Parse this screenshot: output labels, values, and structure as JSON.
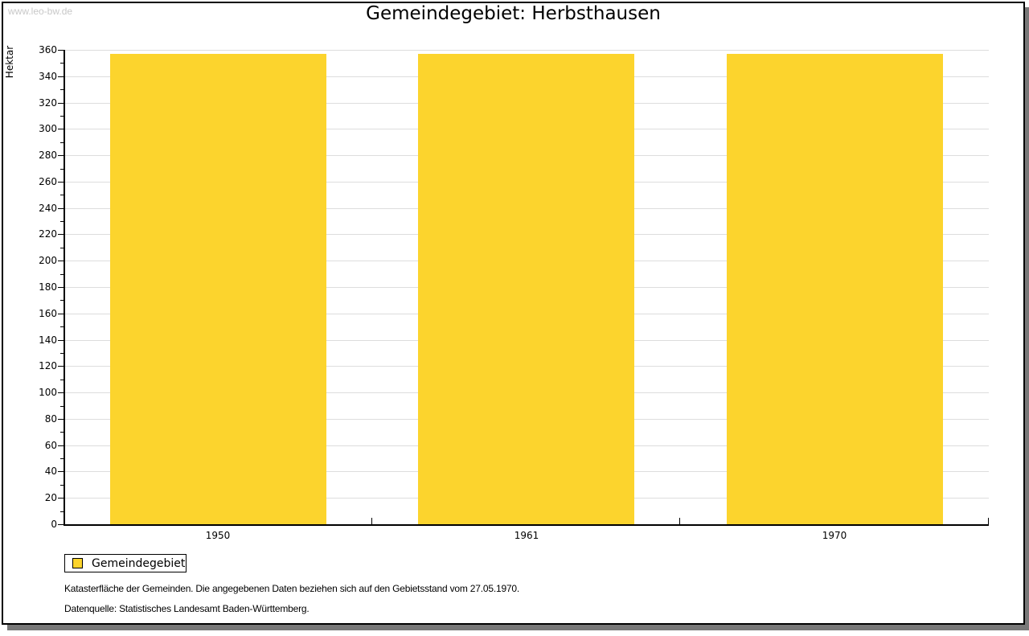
{
  "watermark": "www.leo-bw.de",
  "title": "Gemeindegebiet: Herbsthausen",
  "chart_data": {
    "type": "bar",
    "title": "Gemeindegebiet: Herbsthausen",
    "categories": [
      "1950",
      "1961",
      "1970"
    ],
    "series": [
      {
        "name": "Gemeindegebiet",
        "color": "#FCD42D",
        "values": [
          357,
          357,
          357
        ]
      }
    ],
    "xlabel": "",
    "ylabel": "Hektar",
    "ylim": [
      0,
      360
    ],
    "y_major_step": 20,
    "y_minor_step": 10,
    "y_tick_labels": [
      0,
      20,
      40,
      60,
      80,
      100,
      120,
      140,
      160,
      180,
      200,
      220,
      240,
      260,
      280,
      300,
      320,
      340,
      360
    ],
    "grid": true,
    "legend_position": "bottom-left",
    "bar_width_fraction": 0.7
  },
  "colors": {
    "bar": "#FCD42D",
    "gridline": "#DDDDDD",
    "frame_shadow": "#787878",
    "watermark": "#C8C8C8"
  },
  "legend": {
    "items": [
      {
        "label": "Gemeindegebiet",
        "color": "#FCD42D"
      }
    ]
  },
  "footer": {
    "line1": "Katasterfläche der Gemeinden. Die angegebenen Daten beziehen sich auf den Gebietsstand vom 27.05.1970.",
    "line2": "Datenquelle: Statistisches Landesamt Baden-Württemberg."
  }
}
